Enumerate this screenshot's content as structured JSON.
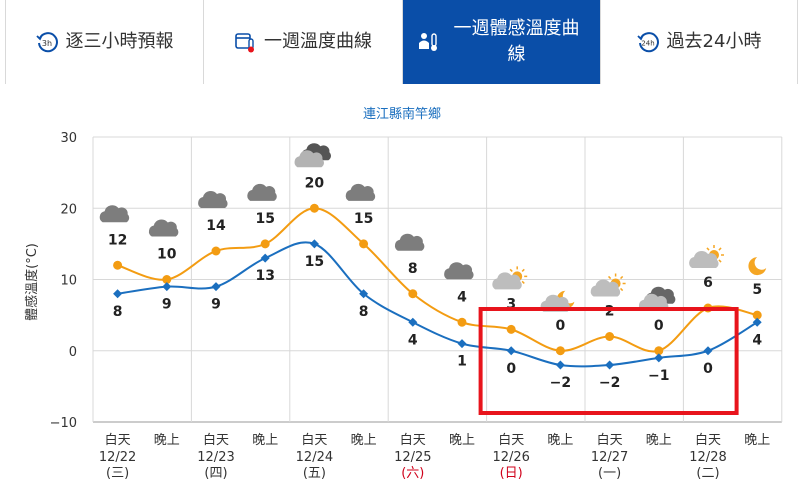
{
  "tabs": [
    {
      "label": "逐三小時預報",
      "icon": "clock-3h-icon",
      "badge": "3h",
      "active": false
    },
    {
      "label": "一週溫度曲線",
      "icon": "thermometer-calendar-icon",
      "active": false
    },
    {
      "label": "一週體感溫度曲線",
      "icon": "person-thermometer-icon",
      "active": true
    },
    {
      "label": "過去24小時",
      "icon": "clock-24h-icon",
      "badge": "24h",
      "active": false
    }
  ],
  "colors": {
    "active_tab": "#0a4ea8",
    "apparent_line": "#f39c12",
    "temp_line": "#1b6fbf",
    "highlight_box": "#e8141c",
    "weekend": "#d0021b"
  },
  "chart_data": {
    "type": "line",
    "title": "連江縣南竿鄉",
    "ylabel": "體感溫度(°C)",
    "ylim": [
      -10,
      30
    ],
    "yticks": [
      -10,
      0,
      10,
      20,
      30
    ],
    "x_labels": [
      {
        "period": "白天",
        "date": "12/22",
        "weekday": "(三)",
        "weekend": false
      },
      {
        "period": "晚上",
        "date": "",
        "weekday": "",
        "weekend": false
      },
      {
        "period": "白天",
        "date": "12/23",
        "weekday": "(四)",
        "weekend": false
      },
      {
        "period": "晚上",
        "date": "",
        "weekday": "",
        "weekend": false
      },
      {
        "period": "白天",
        "date": "12/24",
        "weekday": "(五)",
        "weekend": false
      },
      {
        "period": "晚上",
        "date": "",
        "weekday": "",
        "weekend": false
      },
      {
        "period": "白天",
        "date": "12/25",
        "weekday": "(六)",
        "weekend": true
      },
      {
        "period": "晚上",
        "date": "",
        "weekday": "",
        "weekend": false
      },
      {
        "period": "白天",
        "date": "12/26",
        "weekday": "(日)",
        "weekend": true
      },
      {
        "period": "晚上",
        "date": "",
        "weekday": "",
        "weekend": false
      },
      {
        "period": "白天",
        "date": "12/27",
        "weekday": "(一)",
        "weekend": false
      },
      {
        "period": "晚上",
        "date": "",
        "weekday": "",
        "weekend": false
      },
      {
        "period": "白天",
        "date": "12/28",
        "weekday": "(二)",
        "weekend": false
      },
      {
        "period": "晚上",
        "date": "",
        "weekday": "",
        "weekend": false
      }
    ],
    "series": [
      {
        "values": [
          12,
          10,
          14,
          15,
          20,
          15,
          8,
          4,
          3,
          0,
          2,
          0,
          6,
          5
        ],
        "color": "#f39c12"
      },
      {
        "values": [
          8,
          9,
          9,
          13,
          15,
          8,
          4,
          1,
          0,
          -2,
          -2,
          -1,
          0,
          4
        ],
        "color": "#1b6fbf"
      }
    ],
    "weather_icons": [
      "cloudy-icon",
      "cloudy-icon",
      "cloudy-icon",
      "cloudy-icon",
      "overcast-icon",
      "cloudy-icon",
      "cloudy-icon",
      "cloudy-icon",
      "partly-cloudy-day-icon",
      "partly-cloudy-night-icon",
      "partly-cloudy-day-icon",
      "cloudy-night-icon",
      "partly-cloudy-day-icon",
      "clear-night-icon"
    ],
    "grid": true,
    "highlight_range": {
      "from_index": 8,
      "to_index": 12
    }
  }
}
